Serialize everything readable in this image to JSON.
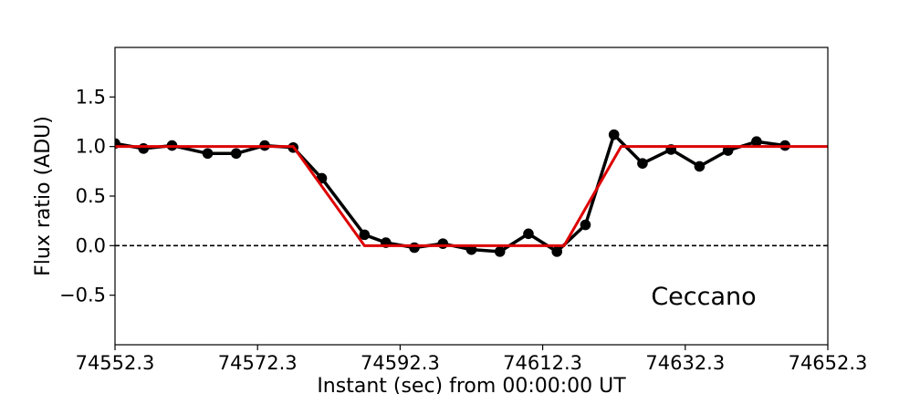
{
  "chart_data": {
    "type": "line",
    "title": "",
    "xlabel": "Instant (sec) from 00:00:00 UT",
    "ylabel": "Flux ratio (ADU)",
    "xlim": [
      74552.3,
      74652.3
    ],
    "ylim": [
      -1.0,
      2.0
    ],
    "x_ticks": [
      74552.3,
      74572.3,
      74592.3,
      74612.3,
      74632.3,
      74652.3
    ],
    "x_tick_labels": [
      "74552.3",
      "74572.3",
      "74592.3",
      "74612.3",
      "74632.3",
      "74652.3"
    ],
    "y_ticks": [
      -0.5,
      0.0,
      0.5,
      1.0,
      1.5
    ],
    "y_tick_labels": [
      "−0.5",
      "0.0",
      "0.5",
      "1.0",
      "1.5"
    ],
    "grid": false,
    "reference_line": {
      "y": 0.0,
      "style": "dashed",
      "color": "#000000"
    },
    "annotation": "Ceccano",
    "series": [
      {
        "kind": "observed",
        "color": "#000000",
        "markers": true,
        "x": [
          74552.3,
          74556.3,
          74560.3,
          74565.3,
          74569.3,
          74573.3,
          74577.3,
          74581.3,
          74587.3,
          74590.3,
          74594.3,
          74598.3,
          74602.3,
          74606.3,
          74610.3,
          74614.3,
          74618.3,
          74622.3,
          74626.3,
          74630.3,
          74634.3,
          74638.3,
          74642.3,
          74646.3
        ],
        "y": [
          1.03,
          0.98,
          1.01,
          0.93,
          0.93,
          1.01,
          0.99,
          0.68,
          0.11,
          0.03,
          -0.02,
          0.02,
          -0.04,
          -0.06,
          0.12,
          -0.06,
          0.21,
          1.12,
          0.83,
          0.97,
          0.8,
          0.96,
          1.05,
          1.01
        ]
      },
      {
        "kind": "model",
        "color": "#dd0000",
        "markers": false,
        "x": [
          74552.3,
          74577.3,
          74587.3,
          74615.3,
          74623.3,
          74652.3
        ],
        "y": [
          1.0,
          1.0,
          0.0,
          0.0,
          1.0,
          1.0
        ]
      }
    ]
  }
}
